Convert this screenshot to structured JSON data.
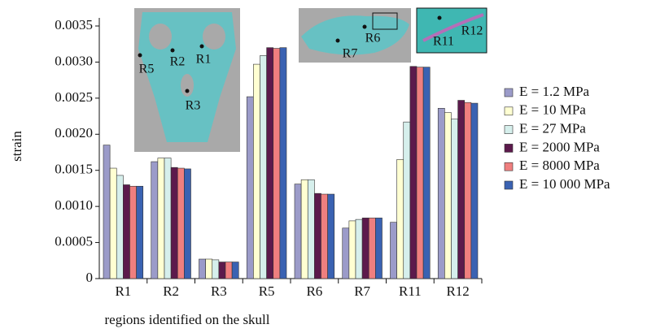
{
  "chart_data": {
    "type": "bar",
    "x_label": "regions identified on the skull",
    "y_label": "strain",
    "categories": [
      "R1",
      "R2",
      "R3",
      "R5",
      "R6",
      "R7",
      "R11",
      "R12"
    ],
    "series": [
      {
        "name": "E = 1.2 MPa",
        "color": "#9b9bc9",
        "values": [
          0.00185,
          0.00162,
          0.00027,
          0.00252,
          0.00131,
          0.0007,
          0.00078,
          0.00236
        ]
      },
      {
        "name": "E = 10 MPa",
        "color": "#ffffd2",
        "values": [
          0.00153,
          0.00167,
          0.00027,
          0.00297,
          0.00137,
          0.0008,
          0.00165,
          0.0023
        ]
      },
      {
        "name": "E = 27 MPa",
        "color": "#d6efec",
        "values": [
          0.00143,
          0.00167,
          0.00026,
          0.00309,
          0.00137,
          0.00082,
          0.00217,
          0.00221
        ]
      },
      {
        "name": "E = 2000 MPa",
        "color": "#5c1a4c",
        "values": [
          0.0013,
          0.00154,
          0.00023,
          0.0032,
          0.00118,
          0.00084,
          0.00294,
          0.00247
        ]
      },
      {
        "name": "E = 8000 MPa",
        "color": "#ef7f7f",
        "values": [
          0.00128,
          0.00153,
          0.00023,
          0.00319,
          0.00117,
          0.00084,
          0.00293,
          0.00244
        ]
      },
      {
        "name": "E = 10 000 MPa",
        "color": "#3a62b2",
        "values": [
          0.00128,
          0.00152,
          0.00023,
          0.0032,
          0.00117,
          0.00084,
          0.00293,
          0.00243
        ]
      }
    ],
    "ylim": [
      0,
      0.0035
    ],
    "yticks": [
      0,
      0.0005,
      {
        "value": 0.001,
        "label": "0.0010"
      },
      0.0015,
      {
        "value": 0.002,
        "label": "0.0020"
      },
      0.0025,
      {
        "value": 0.003,
        "label": "0.0030"
      },
      0.0035
    ],
    "legend": "right",
    "annotations": [
      "R5",
      "R2",
      "R1",
      "R3",
      "R7",
      "R6",
      "R11",
      "R12"
    ]
  }
}
